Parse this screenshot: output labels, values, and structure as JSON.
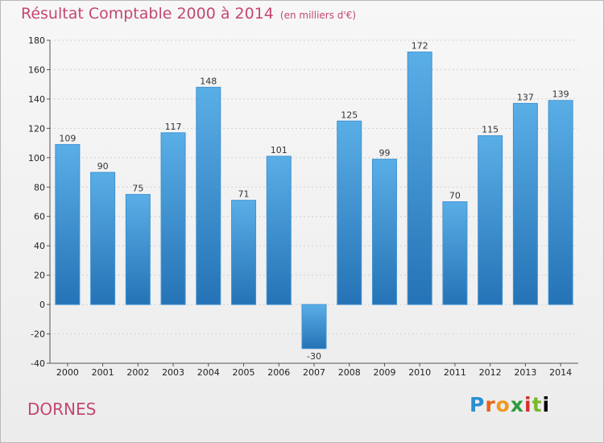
{
  "header": {
    "title": "Résultat Comptable 2000 à 2014",
    "subtitle": "(en milliers d'€)"
  },
  "footer": {
    "commune": "DORNES",
    "logo_letters": [
      "P",
      "r",
      "o",
      "x",
      "i",
      "t",
      "i"
    ]
  },
  "colors": {
    "title": "#c44770",
    "bar_top": "#5aaee6",
    "bar_bottom": "#2573b6",
    "grid": "#d0d0d0"
  },
  "chart_data": {
    "type": "bar",
    "title": "Résultat Comptable 2000 à 2014",
    "ylabel": "en milliers d'€",
    "categories": [
      "2000",
      "2001",
      "2002",
      "2003",
      "2004",
      "2005",
      "2006",
      "2007",
      "2008",
      "2009",
      "2010",
      "2011",
      "2012",
      "2013",
      "2014"
    ],
    "values": [
      109,
      90,
      75,
      117,
      148,
      71,
      101,
      -30,
      125,
      99,
      172,
      70,
      115,
      137,
      139
    ],
    "ylim": [
      -40,
      180
    ],
    "yticks": [
      -40,
      -20,
      0,
      20,
      40,
      60,
      80,
      100,
      120,
      140,
      160,
      180
    ],
    "grid": true
  }
}
